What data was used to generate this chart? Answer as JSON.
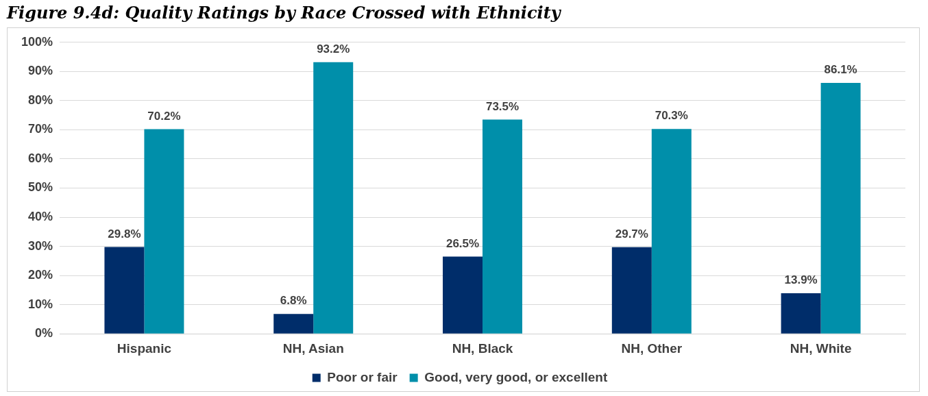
{
  "chart_data": {
    "type": "bar",
    "title": "Figure 9.4d: Quality Ratings by Race Crossed with Ethnicity",
    "categories": [
      "Hispanic",
      "NH, Asian",
      "NH, Black",
      "NH, Other",
      "NH, White"
    ],
    "series": [
      {
        "name": "Poor or fair",
        "color": "#002d6a",
        "values": [
          29.8,
          6.8,
          26.5,
          29.7,
          13.9
        ],
        "value_labels": [
          "29.8%",
          "6.8%",
          "26.5%",
          "29.7%",
          "13.9%"
        ]
      },
      {
        "name": "Good, very good, or excellent",
        "color": "#008faa",
        "values": [
          70.2,
          93.2,
          73.5,
          70.3,
          86.1
        ],
        "value_labels": [
          "70.2%",
          "93.2%",
          "73.5%",
          "70.3%",
          "86.1%"
        ]
      }
    ],
    "ylim": [
      0,
      100
    ],
    "yticks": [
      {
        "value": 0,
        "label": "0%"
      },
      {
        "value": 10,
        "label": "10%"
      },
      {
        "value": 20,
        "label": "20%"
      },
      {
        "value": 30,
        "label": "30%"
      },
      {
        "value": 40,
        "label": "40%"
      },
      {
        "value": 50,
        "label": "50%"
      },
      {
        "value": 60,
        "label": "60%"
      },
      {
        "value": 70,
        "label": "70%"
      },
      {
        "value": 80,
        "label": "80%"
      },
      {
        "value": 90,
        "label": "90%"
      },
      {
        "value": 100,
        "label": "100%"
      }
    ],
    "grid": "y",
    "legend": "bottom"
  }
}
